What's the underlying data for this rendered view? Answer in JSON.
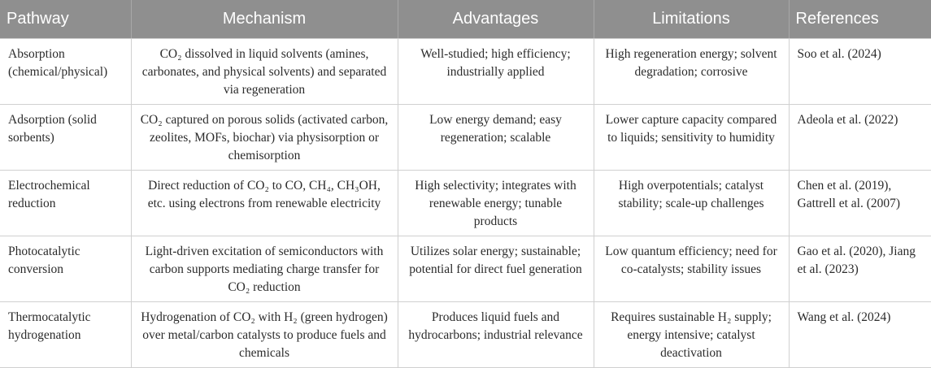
{
  "table": {
    "headers": [
      "Pathway",
      "Mechanism",
      "Advantages",
      "Limitations",
      "References"
    ],
    "rows": [
      {
        "pathway": "Absorption (chemical/physical)",
        "mechanism": "CO₂ dissolved in liquid solvents (amines, carbonates, and physical solvents) and separated via regeneration",
        "advantages": "Well-studied; high efficiency; industrially applied",
        "limitations": "High regeneration energy; solvent degradation; corrosive",
        "references": "Soo et al. (2024)"
      },
      {
        "pathway": "Adsorption (solid sorbents)",
        "mechanism": "CO₂ captured on porous solids (activated carbon, zeolites, MOFs, biochar) via physisorption or chemisorption",
        "advantages": "Low energy demand; easy regeneration; scalable",
        "limitations": "Lower capture capacity compared to liquids; sensitivity to humidity",
        "references": "Adeola et al. (2022)"
      },
      {
        "pathway": "Electrochemical reduction",
        "mechanism": "Direct reduction of CO₂ to CO, CH₄, CH₃OH, etc. using electrons from renewable electricity",
        "advantages": "High selectivity; integrates with renewable energy; tunable products",
        "limitations": "High overpotentials; catalyst stability; scale-up challenges",
        "references": "Chen et al. (2019), Gattrell et al. (2007)"
      },
      {
        "pathway": "Photocatalytic conversion",
        "mechanism": "Light-driven excitation of semiconductors with carbon supports mediating charge transfer for CO₂ reduction",
        "advantages": "Utilizes solar energy; sustainable; potential for direct fuel generation",
        "limitations": "Low quantum efficiency; need for co-catalysts; stability issues",
        "references": "Gao et al. (2020), Jiang et al. (2023)"
      },
      {
        "pathway": "Thermocatalytic hydrogenation",
        "mechanism": "Hydrogenation of CO₂ with H₂ (green hydrogen) over metal/carbon catalysts to produce fuels and chemicals",
        "advantages": "Produces liquid fuels and hydrocarbons; industrial relevance",
        "limitations": "Requires sustainable H₂ supply; energy intensive; catalyst deactivation",
        "references": "Wang et al. (2024)"
      }
    ]
  },
  "colors": {
    "header_bg": "#8f8f8f",
    "header_text": "#ffffff",
    "border": "#d0d0d0"
  }
}
